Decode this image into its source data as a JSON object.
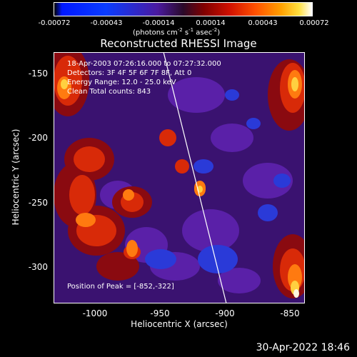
{
  "colorbar": {
    "ticks": [
      "-0.00072",
      "-0.00043",
      "-0.00014",
      "0.00014",
      "0.00043",
      "0.00072"
    ],
    "units_prefix": "(photons cm",
    "units_exp1": "-2",
    "units_mid1": " s",
    "units_exp2": "-1",
    "units_mid2": " asec",
    "units_exp3": "-2",
    "units_suffix": ")"
  },
  "image": {
    "title": "Reconstructed RHESSI Image",
    "info_lines": [
      "18-Apr-2003 07:26:16.000 to 07:27:32.000",
      "Detectors: 3F 4F 5F 6F 7F 8F, Att 0",
      "Energy Range: 12.0 - 25.0 keV",
      "Clean     Total counts: 843"
    ],
    "peak_text": "Position of Peak = [-852,-322]",
    "x_axis": {
      "label": "Heliocentric X (arcsec)",
      "ticks": [
        "-1000",
        "-950",
        "-900",
        "-850"
      ],
      "range": [
        -1032,
        -838
      ]
    },
    "y_axis": {
      "label": "Heliocentric Y (arcsec)",
      "ticks": [
        "-150",
        "-200",
        "-250",
        "-300"
      ],
      "range": [
        -325,
        -130
      ]
    }
  },
  "timestamp": "30-Apr-2022 18:46"
}
